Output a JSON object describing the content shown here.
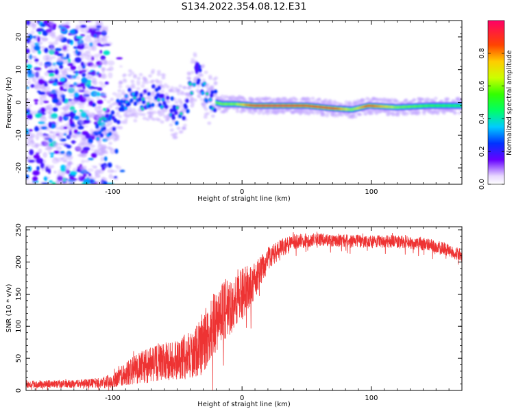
{
  "chart_data": [
    {
      "type": "heatmap",
      "title": "S134.2022.354.08.12.E31",
      "xlabel": "Height of straight line (km)",
      "ylabel": "Frequency (Hz)",
      "xlim": [
        -167,
        170
      ],
      "ylim": [
        -25,
        25
      ],
      "x_ticks": [
        -100,
        0,
        100
      ],
      "x_tick_labels": [
        "-100",
        "0",
        "100"
      ],
      "y_ticks": [
        -20,
        -10,
        0,
        10,
        20
      ],
      "y_tick_labels": [
        "-20",
        "-10",
        "0",
        "10",
        "20"
      ],
      "colorbar": {
        "label": "Normalized spectral amplitude",
        "range": [
          0,
          1
        ],
        "ticks": [
          0.0,
          0.2,
          0.4,
          0.6,
          0.8
        ],
        "tick_labels": [
          "0.0",
          "0.2",
          "0.4",
          "0.6",
          "0.8"
        ],
        "colormap": "gist_rainbow_r"
      },
      "signal_track": {
        "description": "dominant frequency vs height",
        "points": [
          {
            "x": -112,
            "f": -8.5,
            "a": 0.45
          },
          {
            "x": -100,
            "f": -6.5,
            "a": 0.5
          },
          {
            "x": -92,
            "f": 0.5,
            "a": 0.4
          },
          {
            "x": -85,
            "f": 2.5,
            "a": 0.5
          },
          {
            "x": -75,
            "f": 0.0,
            "a": 0.45
          },
          {
            "x": -68,
            "f": 2.5,
            "a": 0.5
          },
          {
            "x": -60,
            "f": 1.5,
            "a": 0.4
          },
          {
            "x": -52,
            "f": -3.5,
            "a": 0.45
          },
          {
            "x": -44,
            "f": -2.0,
            "a": 0.5
          },
          {
            "x": -35,
            "f": 10.5,
            "a": 0.3
          },
          {
            "x": -26,
            "f": 0.5,
            "a": 0.55
          },
          {
            "x": -15,
            "f": -0.5,
            "a": 0.6
          },
          {
            "x": -5,
            "f": -0.5,
            "a": 0.6
          },
          {
            "x": 10,
            "f": -1.0,
            "a": 0.95
          },
          {
            "x": 30,
            "f": -1.0,
            "a": 0.97
          },
          {
            "x": 50,
            "f": -1.0,
            "a": 0.9
          },
          {
            "x": 70,
            "f": -1.8,
            "a": 0.92
          },
          {
            "x": 85,
            "f": -2.2,
            "a": 0.6
          },
          {
            "x": 98,
            "f": -1.0,
            "a": 0.9
          },
          {
            "x": 120,
            "f": -1.5,
            "a": 0.6
          },
          {
            "x": 145,
            "f": -1.0,
            "a": 0.55
          },
          {
            "x": 168,
            "f": -1.0,
            "a": 0.5
          }
        ]
      },
      "noise_region": {
        "x_range": [
          -167,
          -105
        ],
        "f_range": [
          -25,
          25
        ],
        "amplitude_range": [
          0.1,
          0.4
        ]
      }
    },
    {
      "type": "line",
      "title": "",
      "xlabel": "Height of straight line (km)",
      "ylabel": "SNR (10 * v/v)",
      "xlim": [
        -167,
        170
      ],
      "ylim": [
        0,
        255
      ],
      "x_ticks": [
        -100,
        0,
        100
      ],
      "x_tick_labels": [
        "-100",
        "0",
        "100"
      ],
      "y_ticks": [
        0,
        50,
        100,
        150,
        200,
        250
      ],
      "y_tick_labels": [
        "0",
        "50",
        "100",
        "150",
        "200",
        "250"
      ],
      "series": [
        {
          "name": "SNR",
          "color": "#ee3333",
          "envelope_x": [
            -167,
            -130,
            -110,
            -100,
            -90,
            -80,
            -70,
            -60,
            -50,
            -40,
            -30,
            -20,
            -10,
            0,
            10,
            20,
            30,
            40,
            60,
            80,
            100,
            120,
            140,
            155,
            170
          ],
          "envelope_mean": [
            10,
            10,
            12,
            16,
            25,
            35,
            40,
            45,
            48,
            55,
            70,
            110,
            130,
            150,
            170,
            205,
            222,
            232,
            235,
            233,
            232,
            232,
            228,
            222,
            210
          ],
          "envelope_spread": [
            6,
            6,
            8,
            12,
            18,
            25,
            28,
            30,
            32,
            38,
            45,
            50,
            45,
            40,
            30,
            18,
            14,
            12,
            10,
            10,
            10,
            10,
            10,
            10,
            10
          ]
        }
      ]
    }
  ]
}
